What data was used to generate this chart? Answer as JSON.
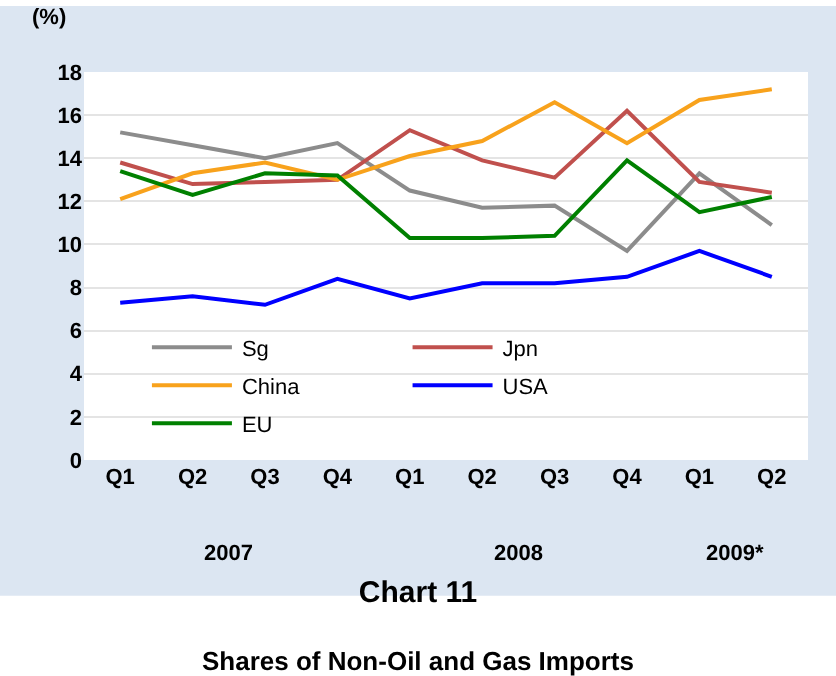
{
  "chart_data": {
    "type": "line",
    "title": "Chart 11",
    "subtitle": "Shares of Non-Oil and Gas Imports",
    "ylabel": "(%)",
    "categories": [
      "Q1",
      "Q2",
      "Q3",
      "Q4",
      "Q1",
      "Q2",
      "Q3",
      "Q4",
      "Q1",
      "Q2"
    ],
    "annotations": [
      "2007",
      "2008",
      "2009*"
    ],
    "series": [
      {
        "name": "Sg",
        "color": "#8c8c8c",
        "values": [
          15.2,
          14.6,
          14.0,
          14.7,
          12.5,
          11.7,
          11.8,
          9.7,
          13.3,
          10.9
        ]
      },
      {
        "name": "Jpn",
        "color": "#c0504d",
        "values": [
          13.8,
          12.8,
          12.9,
          13.0,
          15.3,
          13.9,
          13.1,
          16.2,
          12.9,
          12.4
        ]
      },
      {
        "name": "China",
        "color": "#f8a21c",
        "values": [
          12.1,
          13.3,
          13.8,
          13.0,
          14.1,
          14.8,
          16.6,
          14.7,
          16.7,
          17.2
        ]
      },
      {
        "name": "USA",
        "color": "#0000ff",
        "values": [
          7.3,
          7.6,
          7.2,
          8.4,
          7.5,
          8.2,
          8.2,
          8.5,
          9.7,
          8.5
        ]
      },
      {
        "name": "EU",
        "color": "#008000",
        "values": [
          13.4,
          12.3,
          13.3,
          13.2,
          10.3,
          10.3,
          10.4,
          13.9,
          11.5,
          12.2
        ]
      }
    ],
    "ylim": [
      0,
      18
    ],
    "yticks": [
      0,
      2,
      4,
      6,
      8,
      10,
      12,
      14,
      16,
      18
    ],
    "grid": "y",
    "legend": "bottom left",
    "marker": "none",
    "line_style": "solid"
  }
}
